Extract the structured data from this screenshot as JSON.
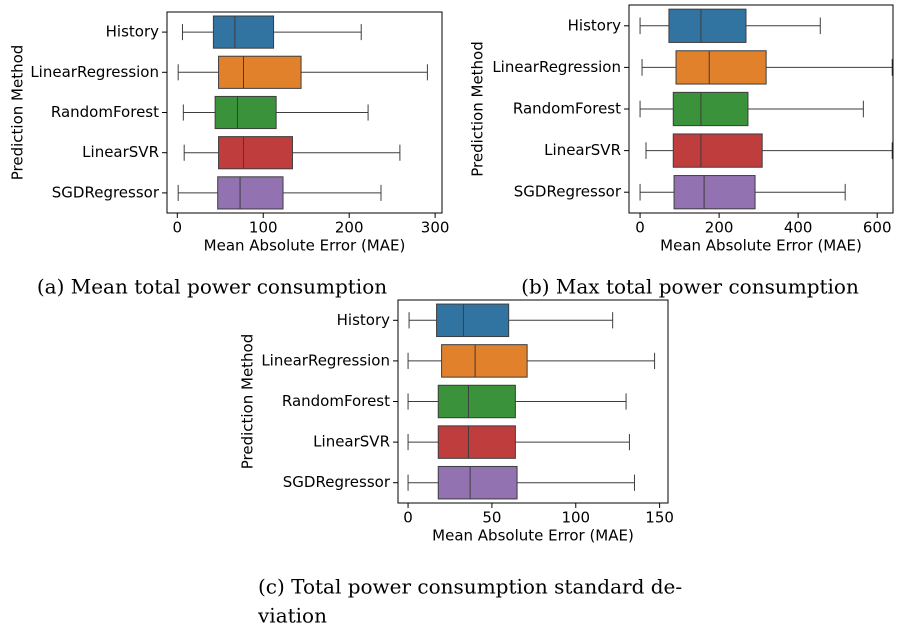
{
  "chart_data": [
    {
      "type": "box",
      "xlabel": "Mean Absolute Error (MAE)",
      "ylabel": "Prediction Method",
      "caption": [
        "(a) Mean total power consumption"
      ],
      "categories": [
        "History",
        "LinearRegression",
        "RandomForest",
        "LinearSVR",
        "SGDRegressor"
      ],
      "colors": [
        "#3274a1",
        "#e1812c",
        "#3a923a",
        "#c03d3e",
        "#9372b2"
      ],
      "boxes": [
        {
          "whislo": 6,
          "q1": 42,
          "med": 67,
          "q3": 112,
          "whishi": 214
        },
        {
          "whislo": 1,
          "q1": 48,
          "med": 77,
          "q3": 144,
          "whishi": 291
        },
        {
          "whislo": 7,
          "q1": 44,
          "med": 70,
          "q3": 115,
          "whishi": 222
        },
        {
          "whislo": 8,
          "q1": 48,
          "med": 77,
          "q3": 134,
          "whishi": 259
        },
        {
          "whislo": 1,
          "q1": 47,
          "med": 73,
          "q3": 123,
          "whishi": 237
        }
      ],
      "xlim": [
        -12,
        308
      ],
      "xticks": [
        0,
        100,
        200,
        300
      ]
    },
    {
      "type": "box",
      "xlabel": "Mean Absolute Error (MAE)",
      "ylabel": "Prediction Method",
      "caption": [
        "(b) Max total power consumption"
      ],
      "categories": [
        "History",
        "LinearRegression",
        "RandomForest",
        "LinearSVR",
        "SGDRegressor"
      ],
      "colors": [
        "#3274a1",
        "#e1812c",
        "#3a923a",
        "#c03d3e",
        "#9372b2"
      ],
      "boxes": [
        {
          "whislo": 0,
          "q1": 73,
          "med": 154,
          "q3": 268,
          "whishi": 456
        },
        {
          "whislo": 5,
          "q1": 91,
          "med": 175,
          "q3": 319,
          "whishi": 638
        },
        {
          "whislo": 0,
          "q1": 84,
          "med": 154,
          "q3": 273,
          "whishi": 565
        },
        {
          "whislo": 15,
          "q1": 84,
          "med": 154,
          "q3": 309,
          "whishi": 638
        },
        {
          "whislo": 0,
          "q1": 86,
          "med": 162,
          "q3": 291,
          "whishi": 519
        }
      ],
      "xlim": [
        -28,
        640
      ],
      "xticks": [
        0,
        200,
        400,
        600
      ]
    },
    {
      "type": "box",
      "xlabel": "Mean Absolute Error (MAE)",
      "ylabel": "Prediction Method",
      "caption": [
        "(c) Total power consumption standard de-",
        "viation"
      ],
      "categories": [
        "History",
        "LinearRegression",
        "RandomForest",
        "LinearSVR",
        "SGDRegressor"
      ],
      "colors": [
        "#3274a1",
        "#e1812c",
        "#3a923a",
        "#c03d3e",
        "#9372b2"
      ],
      "boxes": [
        {
          "whislo": 0.6,
          "q1": 17,
          "med": 33,
          "q3": 60,
          "whishi": 122
        },
        {
          "whislo": 0,
          "q1": 20,
          "med": 40,
          "q3": 71,
          "whishi": 147
        },
        {
          "whislo": 0,
          "q1": 18,
          "med": 36,
          "q3": 64,
          "whishi": 130
        },
        {
          "whislo": 0,
          "q1": 18,
          "med": 36,
          "q3": 64,
          "whishi": 132
        },
        {
          "whislo": 0,
          "q1": 18,
          "med": 37,
          "q3": 65,
          "whishi": 135
        }
      ],
      "xlim": [
        -6,
        155
      ],
      "xticks": [
        0,
        50,
        100,
        150
      ]
    }
  ]
}
